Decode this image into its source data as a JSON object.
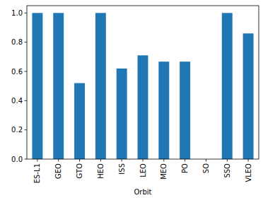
{
  "chart_data": {
    "type": "bar",
    "xlabel": "Orbit",
    "categories": [
      "ES-L1",
      "GEO",
      "GTO",
      "HEO",
      "ISS",
      "LEO",
      "MEO",
      "PO",
      "SO",
      "SSO",
      "VLEO"
    ],
    "values": [
      1.0,
      1.0,
      0.52,
      1.0,
      0.62,
      0.71,
      0.667,
      0.667,
      0,
      1.0,
      0.86
    ],
    "color": "#1f77b4",
    "ylim": [
      0,
      1.05
    ],
    "yticks": [
      {
        "value": 0,
        "label": "0.0"
      },
      {
        "value": 0.2,
        "label": "0.2"
      },
      {
        "value": 0.4,
        "label": "0.4"
      },
      {
        "value": 0.6,
        "label": "0.6"
      },
      {
        "value": 0.8,
        "label": "0.8"
      },
      {
        "value": 1.0,
        "label": "1.0"
      }
    ],
    "grid": false
  }
}
